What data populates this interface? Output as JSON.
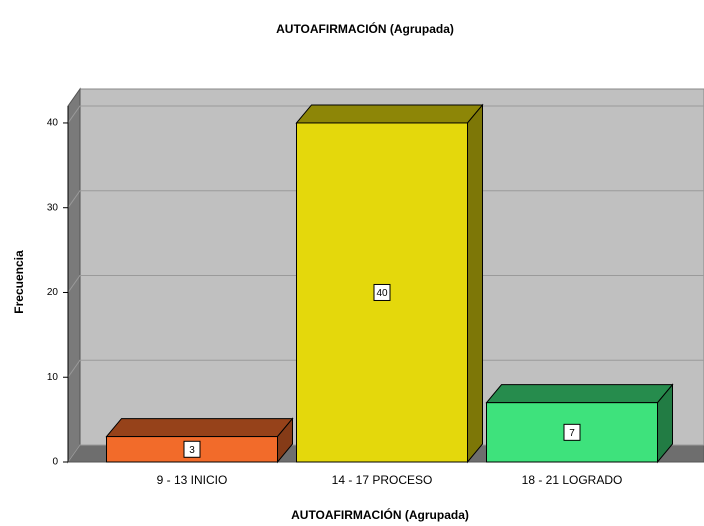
{
  "chart_data": {
    "type": "bar3d",
    "title": "AUTOAFIRMACIÓN (Agrupada)",
    "x_label": "AUTOAFIRMACIÓN (Agrupada)",
    "y_label": "Frecuencia",
    "categories": [
      "9 - 13 INICIO",
      "14 - 17 PROCESO",
      "18 - 21 LOGRADO"
    ],
    "values": [
      3,
      40,
      7
    ],
    "colors": [
      "#f26b2a",
      "#e4d80c",
      "#3ee27c"
    ],
    "ylim": [
      0,
      42
    ],
    "yticks": [
      0,
      10,
      20,
      30,
      40
    ],
    "grid": true
  }
}
